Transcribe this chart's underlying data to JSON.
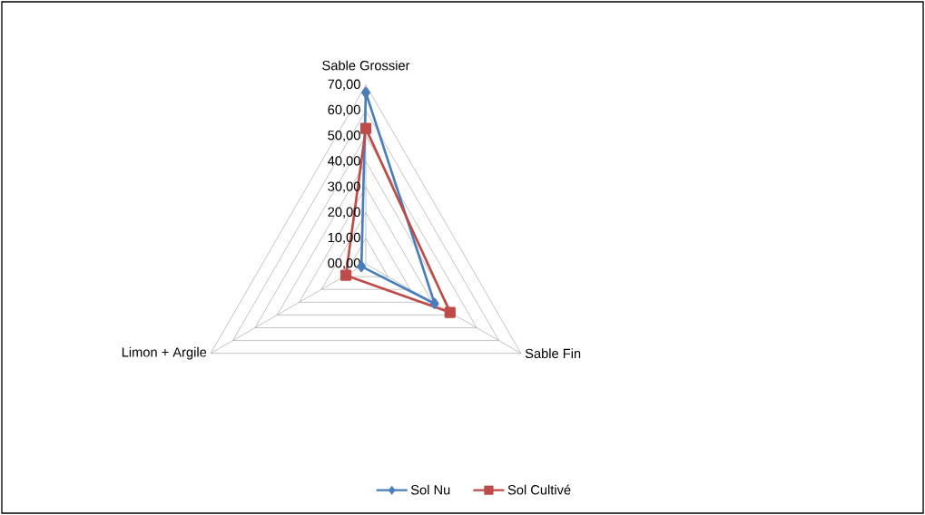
{
  "chart_data": {
    "type": "radar",
    "categories": [
      "Sable Grossier",
      "Sable Fin",
      "Limon + Argile"
    ],
    "series": [
      {
        "name": "Sol Nu",
        "color": "#4a7ebb",
        "marker": "diamond",
        "values": [
          67,
          31,
          2
        ]
      },
      {
        "name": "Sol Cultivé",
        "color": "#be4b48",
        "marker": "square",
        "values": [
          53,
          38,
          9
        ]
      }
    ],
    "ylim": [
      0,
      70
    ],
    "yticks": [
      {
        "value": 0,
        "label": "00,00"
      },
      {
        "value": 10,
        "label": "10,00"
      },
      {
        "value": 20,
        "label": "20,00"
      },
      {
        "value": 30,
        "label": "30,00"
      },
      {
        "value": 40,
        "label": "40,00"
      },
      {
        "value": 50,
        "label": "50,00"
      },
      {
        "value": 60,
        "label": "60,00"
      },
      {
        "value": 70,
        "label": "70,00"
      }
    ],
    "grid": true,
    "legend": "bottom"
  }
}
